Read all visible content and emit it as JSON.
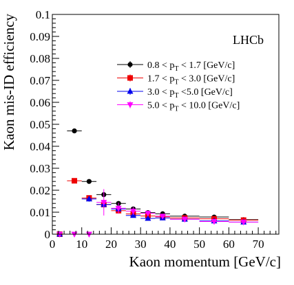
{
  "chart_data": {
    "type": "scatter",
    "title": "",
    "xlabel": "Kaon momentum [GeV/c]",
    "ylabel": "Kaon mis-ID efficiency",
    "annotation": "LHCb",
    "xlim": [
      0,
      77
    ],
    "ylim": [
      0,
      0.1
    ],
    "x_ticks": [
      0,
      10,
      20,
      30,
      40,
      50,
      60,
      70
    ],
    "y_ticks": [
      0,
      0.01,
      0.02,
      0.03,
      0.04,
      0.05,
      0.06,
      0.07,
      0.08,
      0.09,
      0.1
    ],
    "y_tick_labels": [
      "0",
      "0.01",
      "0.02",
      "0.03",
      "0.04",
      "0.05",
      "0.06",
      "0.07",
      "0.08",
      "0.09",
      "0.1"
    ],
    "legend_position": "top-right",
    "series": [
      {
        "legend_parts": [
          "0.8 < p",
          "T",
          " < 1.7 [GeV/c]"
        ],
        "color": "#000000",
        "marker": "circle",
        "points": [
          {
            "x": 2.5,
            "xerr": 2.5,
            "y": 0.0,
            "yerr": 0.0005
          },
          {
            "x": 7.5,
            "xerr": 2.5,
            "y": 0.047,
            "yerr": 0.0005
          },
          {
            "x": 12.5,
            "xerr": 2.5,
            "y": 0.024,
            "yerr": 0.0005
          },
          {
            "x": 17.5,
            "xerr": 2.5,
            "y": 0.018,
            "yerr": 0.0006
          },
          {
            "x": 22.5,
            "xerr": 2.5,
            "y": 0.014,
            "yerr": 0.0006
          },
          {
            "x": 27.5,
            "xerr": 2.5,
            "y": 0.0115,
            "yerr": 0.0005
          },
          {
            "x": 32.5,
            "xerr": 2.5,
            "y": 0.0098,
            "yerr": 0.0005
          },
          {
            "x": 37.5,
            "xerr": 2.5,
            "y": 0.0093,
            "yerr": 0.0005
          },
          {
            "x": 45,
            "xerr": 5,
            "y": 0.0082,
            "yerr": 0.0004
          },
          {
            "x": 55,
            "xerr": 5,
            "y": 0.0078,
            "yerr": 0.0004
          },
          {
            "x": 65,
            "xerr": 5,
            "y": 0.0066,
            "yerr": 0.0004
          }
        ]
      },
      {
        "legend_parts": [
          "1.7 < p",
          "T",
          " < 3.0 [GeV/c]"
        ],
        "color": "#ee0000",
        "marker": "square",
        "points": [
          {
            "x": 2.5,
            "xerr": 2.5,
            "y": 0.0,
            "yerr": 0.0005
          },
          {
            "x": 7.5,
            "xerr": 2.5,
            "y": 0.0243,
            "yerr": 0.0006
          },
          {
            "x": 12.5,
            "xerr": 2.5,
            "y": 0.0165,
            "yerr": 0.0008
          },
          {
            "x": 17.5,
            "xerr": 2.5,
            "y": 0.0135,
            "yerr": 0.0009
          },
          {
            "x": 22.5,
            "xerr": 2.5,
            "y": 0.0107,
            "yerr": 0.0008
          },
          {
            "x": 27.5,
            "xerr": 2.5,
            "y": 0.0092,
            "yerr": 0.0008
          },
          {
            "x": 32.5,
            "xerr": 2.5,
            "y": 0.0083,
            "yerr": 0.0007
          },
          {
            "x": 37.5,
            "xerr": 2.5,
            "y": 0.0079,
            "yerr": 0.0006
          },
          {
            "x": 45,
            "xerr": 5,
            "y": 0.0074,
            "yerr": 0.0005
          },
          {
            "x": 55,
            "xerr": 5,
            "y": 0.007,
            "yerr": 0.0005
          },
          {
            "x": 65,
            "xerr": 5,
            "y": 0.0064,
            "yerr": 0.0005
          }
        ]
      },
      {
        "legend_parts": [
          "3.0 < p",
          "T",
          " <5.0 [GeV/c]"
        ],
        "color": "#0000ee",
        "marker": "triangle-up",
        "points": [
          {
            "x": 2.5,
            "xerr": 2.5,
            "y": 0.0,
            "yerr": 0.0005
          },
          {
            "x": 12.5,
            "xerr": 2.5,
            "y": 0.016,
            "yerr": 0.0012
          },
          {
            "x": 17.5,
            "xerr": 2.5,
            "y": 0.0135,
            "yerr": 0.0015
          },
          {
            "x": 22.5,
            "xerr": 2.5,
            "y": 0.0115,
            "yerr": 0.0012
          },
          {
            "x": 27.5,
            "xerr": 2.5,
            "y": 0.0085,
            "yerr": 0.001
          },
          {
            "x": 32.5,
            "xerr": 2.5,
            "y": 0.0072,
            "yerr": 0.0009
          },
          {
            "x": 37.5,
            "xerr": 2.5,
            "y": 0.0074,
            "yerr": 0.0008
          },
          {
            "x": 45,
            "xerr": 5,
            "y": 0.0068,
            "yerr": 0.0006
          },
          {
            "x": 55,
            "xerr": 5,
            "y": 0.006,
            "yerr": 0.0006
          },
          {
            "x": 65,
            "xerr": 5,
            "y": 0.0055,
            "yerr": 0.0006
          }
        ]
      },
      {
        "legend_parts": [
          "5.0 < p",
          "T",
          " < 10.0 [GeV/c]"
        ],
        "color": "#ff00ff",
        "marker": "triangle-down",
        "points": [
          {
            "x": 2.5,
            "xerr": 2.5,
            "y": 0.0,
            "yerr": 0.0005
          },
          {
            "x": 7.5,
            "xerr": 2.5,
            "y": 0.0,
            "yerr": 0.0005
          },
          {
            "x": 12.5,
            "xerr": 2.5,
            "y": 0.0,
            "yerr": 0.0005
          },
          {
            "x": 17.5,
            "xerr": 2.5,
            "y": 0.0145,
            "yerr": 0.006
          },
          {
            "x": 22.5,
            "xerr": 2.5,
            "y": 0.0118,
            "yerr": 0.0025
          },
          {
            "x": 27.5,
            "xerr": 2.5,
            "y": 0.0105,
            "yerr": 0.0018
          },
          {
            "x": 32.5,
            "xerr": 2.5,
            "y": 0.0095,
            "yerr": 0.0013
          },
          {
            "x": 37.5,
            "xerr": 2.5,
            "y": 0.0082,
            "yerr": 0.001
          },
          {
            "x": 45,
            "xerr": 5,
            "y": 0.0068,
            "yerr": 0.0008
          },
          {
            "x": 55,
            "xerr": 5,
            "y": 0.0058,
            "yerr": 0.0007
          },
          {
            "x": 65,
            "xerr": 5,
            "y": 0.0055,
            "yerr": 0.0007
          }
        ]
      }
    ]
  }
}
